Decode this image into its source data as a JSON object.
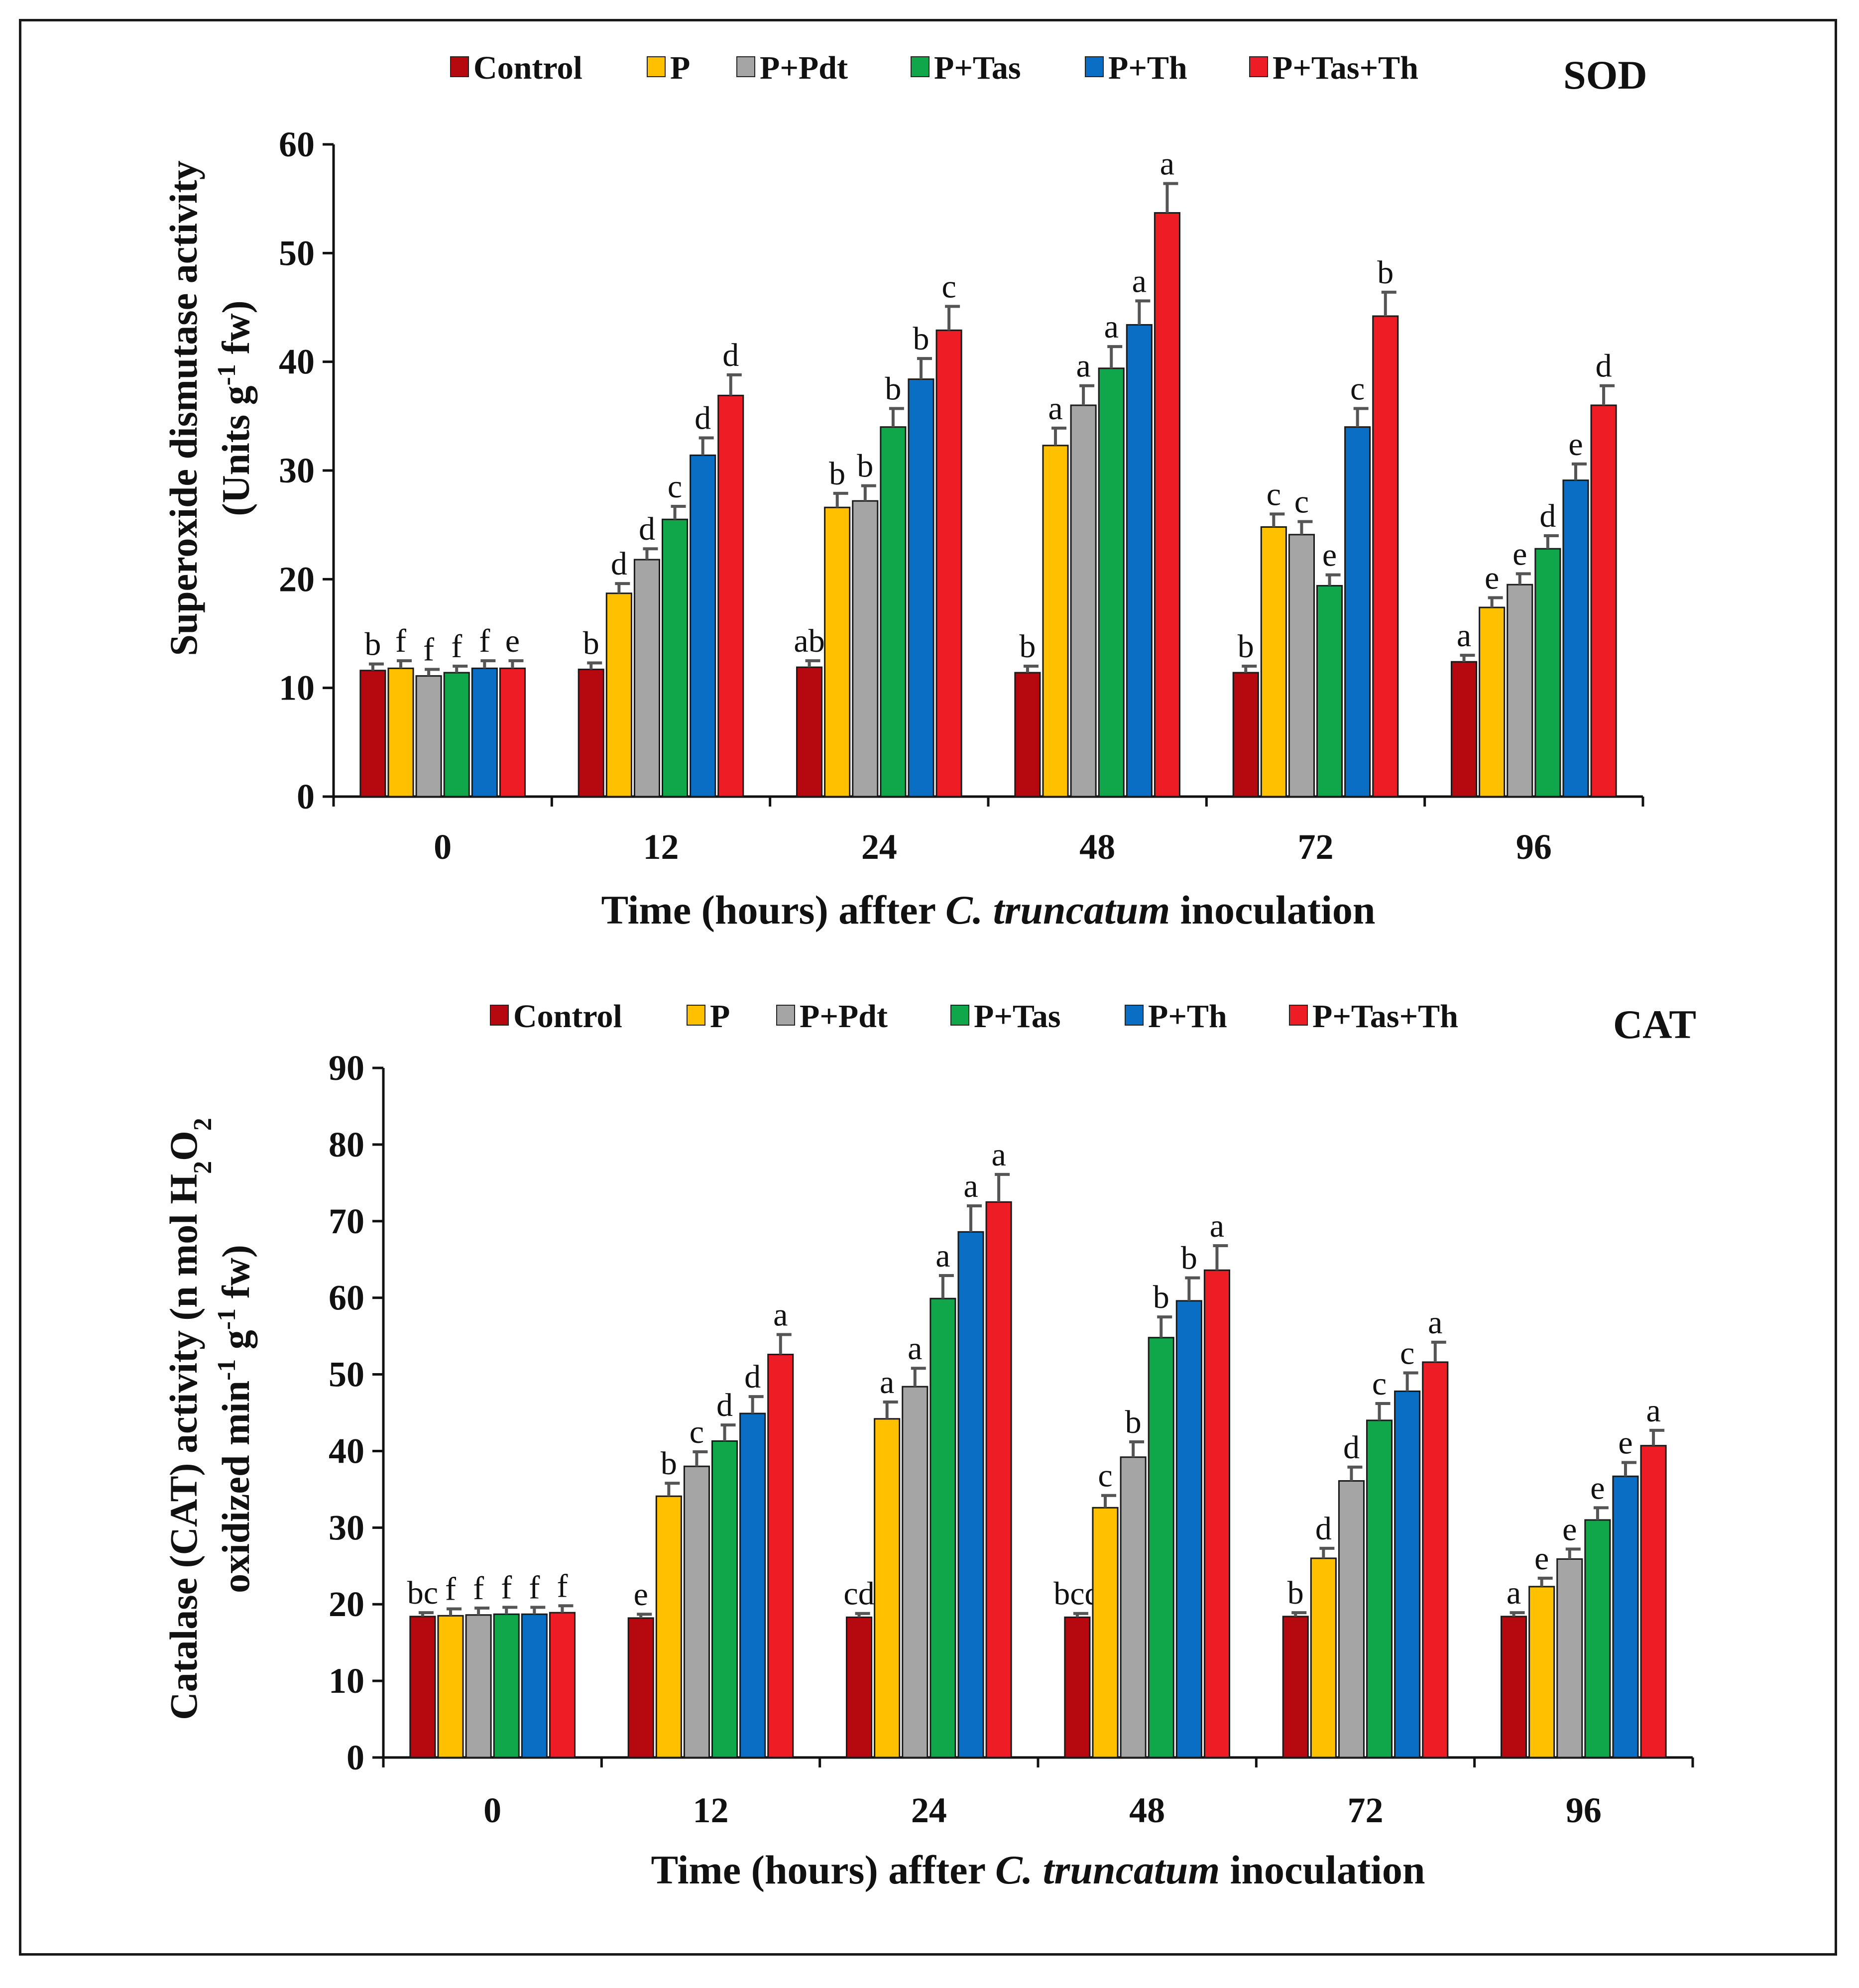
{
  "series_colors": {
    "Control": "#b5090f",
    "P": "#ffc000",
    "P+Pdt": "#a5a5a5",
    "P+Tas": "#10a64a",
    "P+Th": "#0a6ec4",
    "P+Tas+Th": "#ee1c25"
  },
  "chart_data": [
    {
      "type": "bar",
      "panel_tag": "SOD",
      "title": "",
      "xlabel_prefix": "Time (hours) affter ",
      "xlabel_italic": "C. truncatum",
      "xlabel_suffix": " inoculation",
      "ylabel_line1": "Superoxide dismutase activity",
      "ylabel_line2_pre": "(Units g",
      "ylabel_line2_sup": "-1",
      "ylabel_line2_post": " fw)",
      "ylim": [
        0,
        60
      ],
      "yticks": [
        "0",
        "10",
        "20",
        "30",
        "40",
        "50",
        "60"
      ],
      "categories": [
        "0",
        "12",
        "24",
        "48",
        "72",
        "96"
      ],
      "legend_position": "top",
      "series": [
        {
          "name": "Control",
          "values": [
            11.6,
            11.7,
            11.9,
            11.4,
            11.4,
            12.4
          ],
          "errors": [
            0.6,
            0.6,
            0.6,
            0.6,
            0.6,
            0.6
          ],
          "labels": [
            "b",
            "b",
            "ab",
            "b",
            "b",
            "a"
          ]
        },
        {
          "name": "P",
          "values": [
            11.8,
            18.7,
            26.6,
            32.3,
            24.8,
            17.4
          ],
          "errors": [
            0.7,
            0.9,
            1.3,
            1.6,
            1.2,
            0.9
          ],
          "labels": [
            "f",
            "d",
            "b",
            "a",
            "c",
            "e"
          ]
        },
        {
          "name": "P+Pdt",
          "values": [
            11.1,
            21.8,
            27.2,
            36.0,
            24.1,
            19.5
          ],
          "errors": [
            0.6,
            1.0,
            1.4,
            1.8,
            1.2,
            1.0
          ],
          "labels": [
            "f",
            "d",
            "b",
            "a",
            "c",
            "e"
          ]
        },
        {
          "name": "P+Tas",
          "values": [
            11.4,
            25.5,
            34.0,
            39.4,
            19.4,
            22.8
          ],
          "errors": [
            0.6,
            1.2,
            1.7,
            2.0,
            1.0,
            1.2
          ],
          "labels": [
            "f",
            "c",
            "b",
            "a",
            "e",
            "d"
          ]
        },
        {
          "name": "P+Th",
          "values": [
            11.8,
            31.4,
            38.4,
            43.4,
            34.0,
            29.1
          ],
          "errors": [
            0.7,
            1.6,
            1.9,
            2.2,
            1.7,
            1.5
          ],
          "labels": [
            "f",
            "d",
            "b",
            "a",
            "c",
            "e"
          ]
        },
        {
          "name": "P+Tas+Th",
          "values": [
            11.8,
            36.9,
            42.9,
            53.7,
            44.2,
            36.0
          ],
          "errors": [
            0.7,
            1.9,
            2.2,
            2.7,
            2.2,
            1.8
          ],
          "labels": [
            "e",
            "d",
            "c",
            "a",
            "b",
            "d"
          ]
        }
      ]
    },
    {
      "type": "bar",
      "panel_tag": "CAT",
      "title": "",
      "xlabel_prefix": "Time (hours) affter ",
      "xlabel_italic": "C. truncatum",
      "xlabel_suffix": " inoculation",
      "ylabel_line1_pre": "Catalase (CAT) activity (n mol H",
      "ylabel_line1_sub1": "2",
      "ylabel_line1_mid": "O",
      "ylabel_line1_sub2": "2",
      "ylabel_line2_pre": "oxidized min",
      "ylabel_line2_sup1": "-1",
      "ylabel_line2_mid": " g",
      "ylabel_line2_sup2": "-1",
      "ylabel_line2_post": " fw)",
      "ylim": [
        0,
        90
      ],
      "yticks": [
        "0",
        "10",
        "20",
        "30",
        "40",
        "50",
        "60",
        "70",
        "80",
        "90"
      ],
      "categories": [
        "0",
        "12",
        "24",
        "48",
        "72",
        "96"
      ],
      "legend_position": "top",
      "series": [
        {
          "name": "Control",
          "values": [
            18.4,
            18.2,
            18.3,
            18.3,
            18.4,
            18.4
          ],
          "errors": [
            0.5,
            0.5,
            0.5,
            0.5,
            0.5,
            0.5
          ],
          "labels": [
            "bc",
            "e",
            "cd",
            "bcd",
            "b",
            "a"
          ]
        },
        {
          "name": "P",
          "values": [
            18.5,
            34.1,
            44.2,
            32.6,
            26.0,
            22.3
          ],
          "errors": [
            0.9,
            1.7,
            2.2,
            1.6,
            1.3,
            1.1
          ],
          "labels": [
            "f",
            "b",
            "a",
            "c",
            "d",
            "e"
          ]
        },
        {
          "name": "P+Pdt",
          "values": [
            18.6,
            38.0,
            48.4,
            39.2,
            36.1,
            25.9
          ],
          "errors": [
            0.9,
            1.9,
            2.4,
            2.0,
            1.8,
            1.3
          ],
          "labels": [
            "f",
            "c",
            "a",
            "b",
            "d",
            "e"
          ]
        },
        {
          "name": "P+Tas",
          "values": [
            18.7,
            41.3,
            59.9,
            54.8,
            44.0,
            31.0
          ],
          "errors": [
            0.9,
            2.1,
            3.0,
            2.7,
            2.2,
            1.6
          ],
          "labels": [
            "f",
            "d",
            "a",
            "b",
            "c",
            "e"
          ]
        },
        {
          "name": "P+Th",
          "values": [
            18.7,
            44.9,
            68.6,
            59.6,
            47.8,
            36.7
          ],
          "errors": [
            0.9,
            2.2,
            3.4,
            3.0,
            2.4,
            1.8
          ],
          "labels": [
            "f",
            "d",
            "a",
            "b",
            "c",
            "e"
          ]
        },
        {
          "name": "P+Tas+Th",
          "values": [
            18.9,
            52.6,
            72.5,
            63.6,
            51.6,
            40.7
          ],
          "errors": [
            0.9,
            2.6,
            3.6,
            3.2,
            2.6,
            2.0
          ],
          "labels": [
            "f",
            "a",
            "a",
            "a",
            "a",
            "a"
          ]
        }
      ]
    }
  ]
}
